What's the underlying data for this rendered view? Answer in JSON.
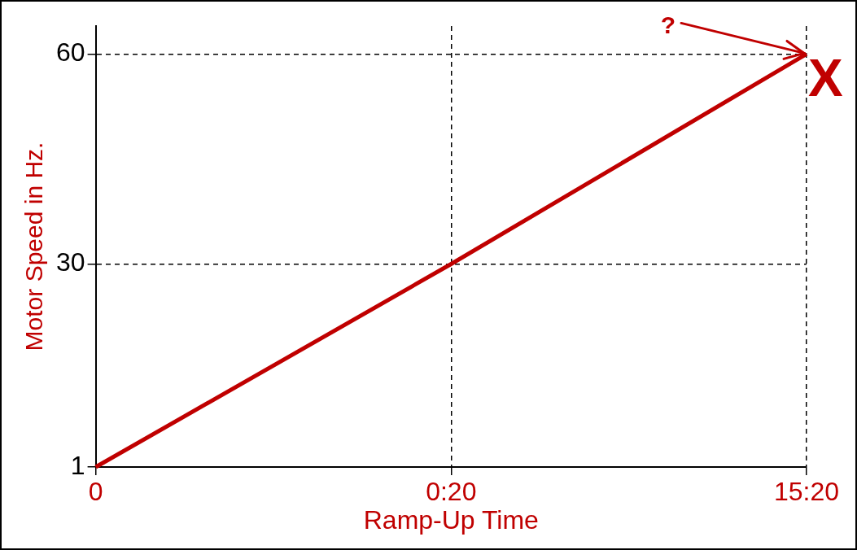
{
  "chart_data": {
    "type": "line",
    "xlabel": "Ramp-Up Time",
    "ylabel": "Motor Speed in Hz.",
    "categories": [
      "0",
      "0:20",
      "15:20"
    ],
    "series": [
      {
        "color": "#c00000",
        "values": [
          1,
          30,
          60
        ]
      }
    ],
    "ylim": [
      1,
      64
    ],
    "yticks": [
      1,
      30,
      60
    ],
    "grid": true,
    "line_style": "solid",
    "marker": "none",
    "legend": false,
    "annotations": [
      {
        "text": "?",
        "x": "15:20",
        "y": 60
      },
      {
        "text": "X",
        "x": "15:20",
        "y": 60
      }
    ]
  }
}
